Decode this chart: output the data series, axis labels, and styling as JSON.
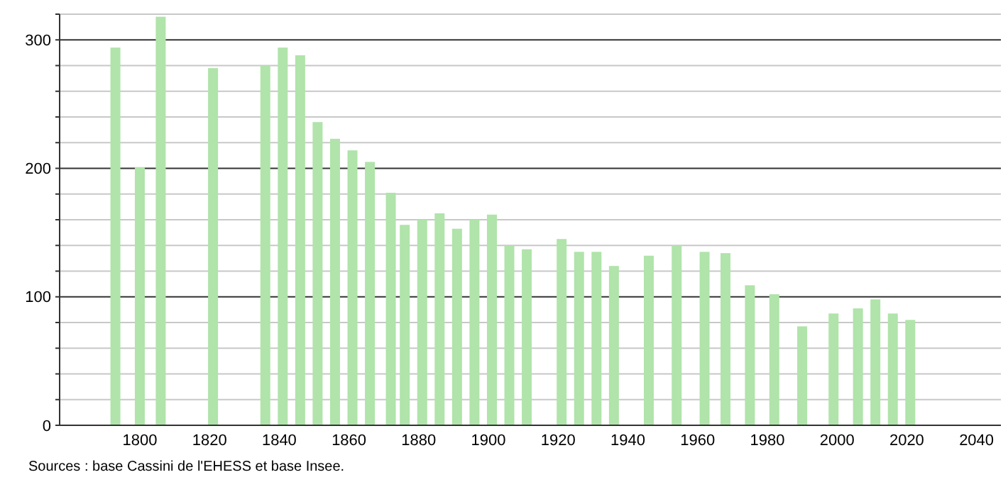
{
  "chart_data": {
    "type": "bar",
    "x": [
      1793,
      1800,
      1806,
      1821,
      1836,
      1841,
      1846,
      1851,
      1856,
      1861,
      1866,
      1872,
      1876,
      1881,
      1886,
      1891,
      1896,
      1901,
      1906,
      1911,
      1921,
      1926,
      1931,
      1936,
      1946,
      1954,
      1962,
      1968,
      1975,
      1982,
      1990,
      1999,
      2006,
      2011,
      2016,
      2021
    ],
    "values": [
      294,
      201,
      318,
      278,
      280,
      294,
      288,
      236,
      223,
      214,
      205,
      181,
      156,
      160,
      165,
      153,
      160,
      164,
      140,
      137,
      145,
      135,
      135,
      124,
      132,
      140,
      135,
      134,
      109,
      102,
      77,
      87,
      91,
      98,
      87,
      82
    ],
    "color": "#b0e4aa",
    "xlim": [
      1777,
      2047
    ],
    "xticks": [
      1800,
      1820,
      1840,
      1860,
      1880,
      1900,
      1920,
      1940,
      1960,
      1980,
      2000,
      2020,
      2040
    ],
    "ylim": [
      0,
      320
    ],
    "yticks": [
      0,
      {
        "value": 20,
        "label": null
      },
      {
        "value": 40,
        "label": null
      },
      {
        "value": 60,
        "label": null
      },
      {
        "value": 80,
        "label": null
      },
      100,
      {
        "value": 120,
        "label": null
      },
      {
        "value": 140,
        "label": null
      },
      {
        "value": 160,
        "label": null
      },
      {
        "value": 180,
        "label": null
      },
      200,
      {
        "value": 220,
        "label": null
      },
      {
        "value": 240,
        "label": null
      },
      {
        "value": 260,
        "label": null
      },
      {
        "value": 280,
        "label": null
      },
      300,
      {
        "value": 320,
        "label": null
      }
    ],
    "grid": "y",
    "annotations": [
      "Sources : base Cassini de l'EHESS et base Insee."
    ]
  }
}
